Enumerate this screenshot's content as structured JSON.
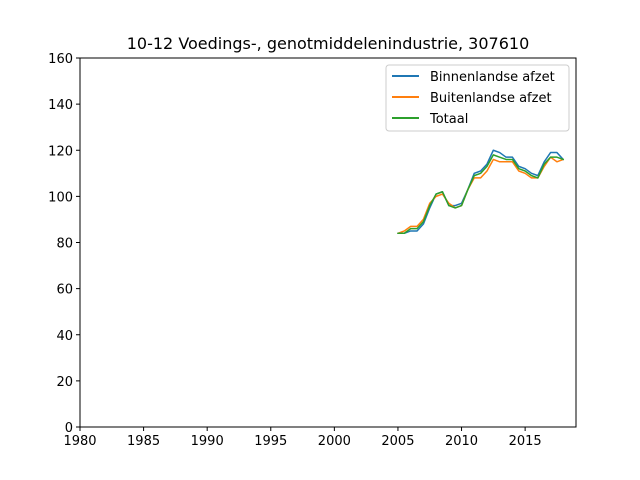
{
  "chart_data": {
    "type": "line",
    "title": "10-12 Voedings-, genotmiddelenindustrie, 307610",
    "xlabel": "",
    "ylabel": "",
    "xlim": [
      1980,
      2019
    ],
    "ylim": [
      0,
      160
    ],
    "xticks": [
      1980,
      1985,
      1990,
      1995,
      2000,
      2005,
      2010,
      2015
    ],
    "yticks": [
      0,
      20,
      40,
      60,
      80,
      100,
      120,
      140,
      160
    ],
    "grid": false,
    "legend_position": "top-right",
    "x": [
      2005.0,
      2005.5,
      2006.0,
      2006.5,
      2007.0,
      2007.5,
      2008.0,
      2008.5,
      2009.0,
      2009.5,
      2010.0,
      2010.5,
      2011.0,
      2011.5,
      2012.0,
      2012.5,
      2013.0,
      2013.5,
      2014.0,
      2014.5,
      2015.0,
      2015.5,
      2016.0,
      2016.5,
      2017.0,
      2017.5,
      2018.0
    ],
    "series": [
      {
        "name": "Binnenlandse afzet",
        "color": "#1f77b4",
        "values": [
          84,
          84,
          85,
          85,
          88,
          95,
          101,
          102,
          96,
          96,
          97,
          103,
          110,
          111,
          114,
          120,
          119,
          117,
          117,
          113,
          112,
          110,
          109,
          115,
          119,
          119,
          116
        ]
      },
      {
        "name": "Buitenlandse afzet",
        "color": "#ff7f0e",
        "values": [
          84,
          85,
          87,
          87,
          90,
          97,
          100,
          101,
          97,
          95,
          96,
          103,
          108,
          108,
          111,
          116,
          115,
          115,
          115,
          111,
          110,
          108,
          108,
          113,
          117,
          115,
          116
        ]
      },
      {
        "name": "Totaal",
        "color": "#2ca02c",
        "values": [
          84,
          84,
          86,
          86,
          89,
          96,
          101,
          102,
          96,
          95,
          96,
          103,
          109,
          110,
          113,
          118,
          117,
          116,
          116,
          112,
          111,
          109,
          108,
          114,
          117,
          117,
          116
        ]
      }
    ]
  }
}
